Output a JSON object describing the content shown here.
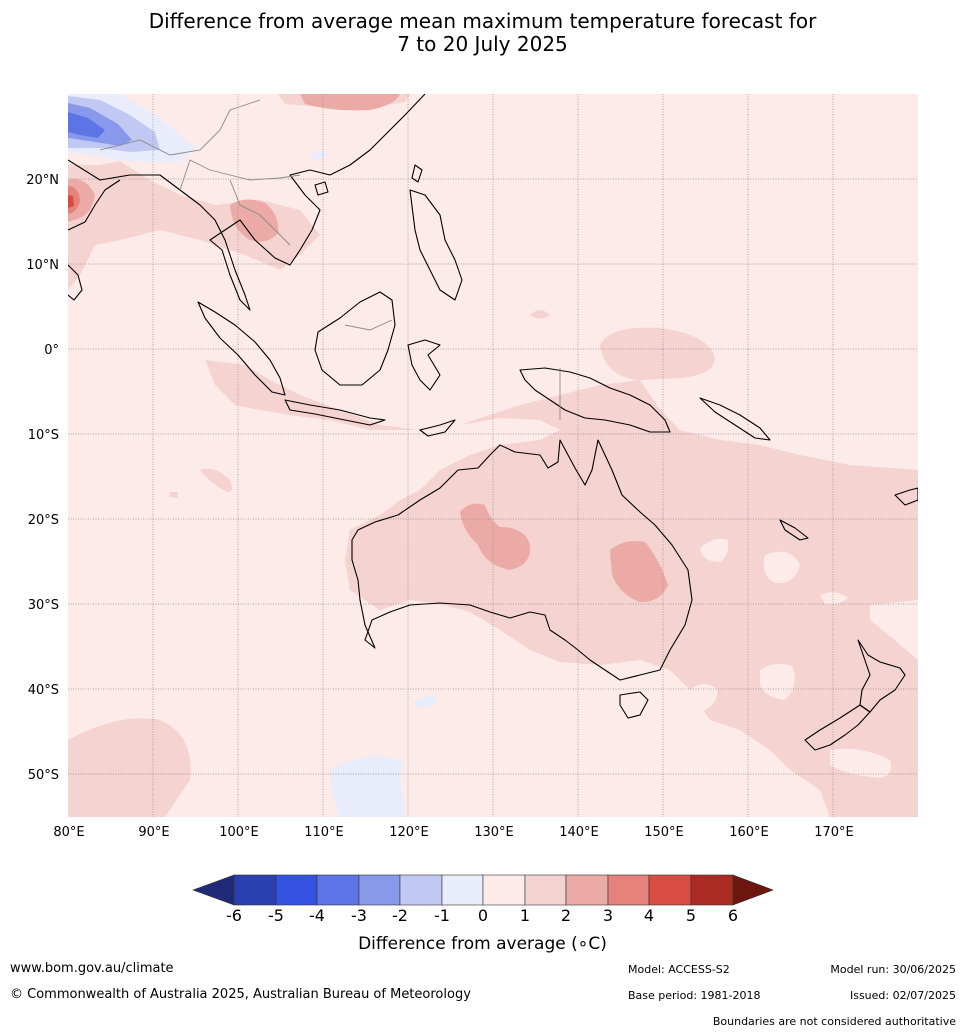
{
  "title": {
    "line1": "Difference from average mean maximum temperature forecast for",
    "line2": "7 to 20 July 2025"
  },
  "map": {
    "lat_labels": [
      "20°N",
      "10°N",
      "0°",
      "10°S",
      "20°S",
      "30°S",
      "40°S",
      "50°S"
    ],
    "lon_labels": [
      "80°E",
      "90°E",
      "100°E",
      "110°E",
      "120°E",
      "130°E",
      "140°E",
      "150°E",
      "160°E",
      "170°E"
    ],
    "extent": {
      "lon": [
        80,
        180
      ],
      "lat": [
        -55,
        30
      ]
    }
  },
  "colorbar": {
    "ticks": [
      "-6",
      "-5",
      "-4",
      "-3",
      "-2",
      "-1",
      "0",
      "1",
      "2",
      "3",
      "4",
      "5",
      "6"
    ],
    "colors": {
      "below_-6": "#1f2a78",
      "-6_-5": "#2a3fb0",
      "-5_-4": "#3352e0",
      "-4_-3": "#5c74e6",
      "-3_-2": "#8899ec",
      "-2_-1": "#c0c8f3",
      "-1_0": "#e8ecfb",
      "0_1": "#fcebe9",
      "1_2": "#f5d3d1",
      "2_3": "#ecaaa6",
      "3_4": "#e5827b",
      "4_5": "#d84c41",
      "5_6": "#a92b22",
      "above_6": "#6d1610"
    },
    "label": "Difference from average (∘C)"
  },
  "footer": {
    "website": "www.bom.gov.au/climate",
    "copyright": "© Commonwealth of Australia 2025, Australian Bureau of Meteorology",
    "model": "Model: ACCESS-S2",
    "base_period": "Base period: 1981-2018",
    "model_run": "Model run: 30/06/2025",
    "issued": "Issued: 02/07/2025",
    "disclaimer": "Boundaries are not considered authoritative"
  }
}
